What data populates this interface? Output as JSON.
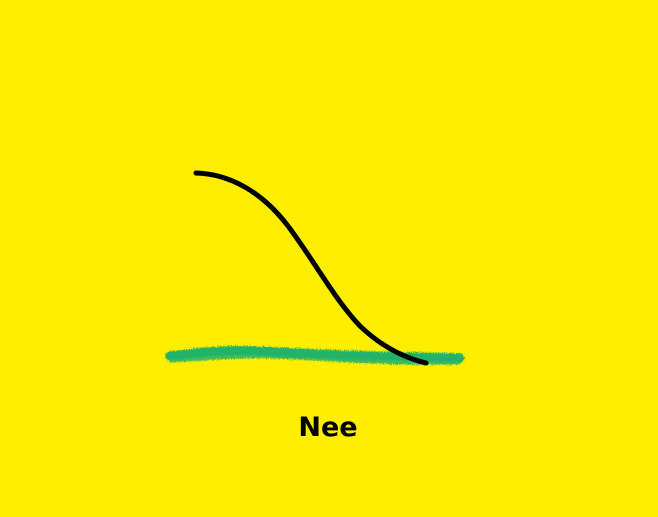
{
  "caption": "Nee",
  "colors": {
    "background": "#FFEE00",
    "curve": "#000000",
    "ground": "#21B36B",
    "text": "#000000"
  }
}
